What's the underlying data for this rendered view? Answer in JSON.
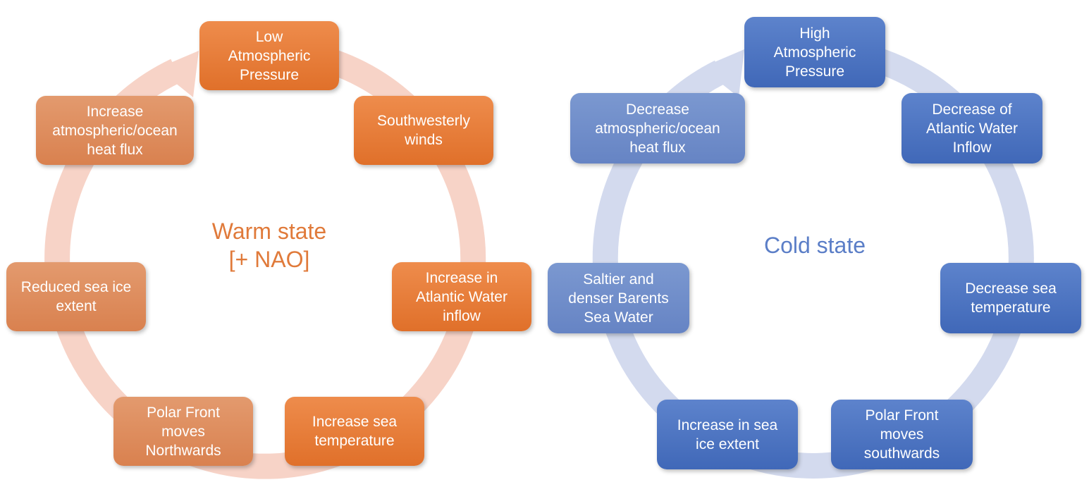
{
  "colors": {
    "warm_accent": "#e07a3a",
    "warm_ring": "#f7d3c7",
    "cold_accent": "#5b7ec7",
    "cold_ring": "#d3daee"
  },
  "warm_cycle": {
    "label": "Warm state\n[+ NAO]",
    "nodes": [
      "Low\nAtmospheric\nPressure",
      "Southwesterly\nwinds",
      "Increase in\nAtlantic Water\ninflow",
      "Increase sea\ntemperature",
      "Polar Front\nmoves\nNorthwards",
      "Reduced sea ice\nextent",
      "Increase\natmospheric/ocean\nheat flux"
    ]
  },
  "cold_cycle": {
    "label": "Cold state",
    "nodes": [
      "High\nAtmospheric\nPressure",
      "Decrease of\nAtlantic Water\nInflow",
      "Decrease sea\ntemperature",
      "Polar Front\nmoves\nsouthwards",
      "Increase in sea\nice extent",
      "Saltier and\ndenser Barents\nSea Water",
      "Decrease\natmospheric/ocean\nheat flux"
    ]
  }
}
